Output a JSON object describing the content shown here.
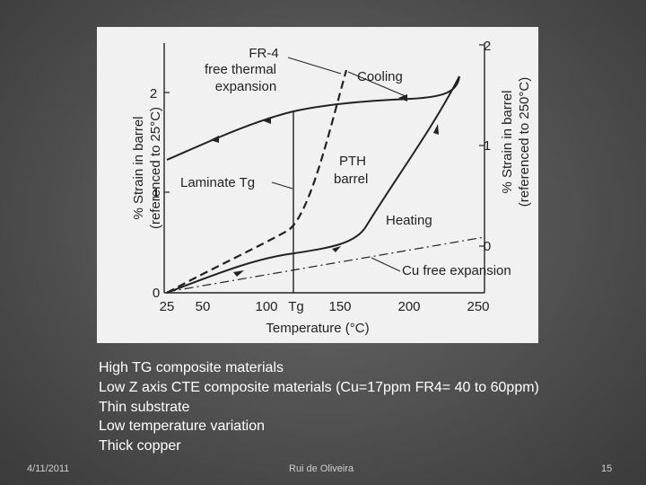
{
  "slide": {
    "bullets": [
      "High TG composite materials",
      "Low Z axis CTE composite materials  (Cu=17ppm FR4= 40 to 60ppm)",
      "Thin substrate",
      "Low temperature variation",
      "Thick copper"
    ],
    "footer": {
      "date": "4/11/2011",
      "author": "Rui de Oliveira",
      "page": "15"
    }
  },
  "figure": {
    "left_axis_label_1": "% Strain in barrel",
    "left_axis_label_2": "(referenced to 25°C)",
    "right_axis_label_1": "% Strain in barrel",
    "right_axis_label_2": "(referenced to 250°C)",
    "x_axis_label": "Temperature (°C)",
    "left_ticks": [
      "2",
      "1",
      "0"
    ],
    "right_ticks": [
      "2",
      "1",
      "0"
    ],
    "x_ticks": [
      "25",
      "50",
      "100",
      "Tg",
      "150",
      "200",
      "250"
    ],
    "annotations": {
      "fr4_line1": "FR-4",
      "fr4_line2": "free thermal",
      "fr4_line3": "expansion",
      "cooling": "Cooling",
      "pth_line1": "PTH",
      "pth_line2": "barrel",
      "heating": "Heating",
      "laminate_tg": "Laminate Tg",
      "cu_free": "Cu free expansion"
    }
  }
}
